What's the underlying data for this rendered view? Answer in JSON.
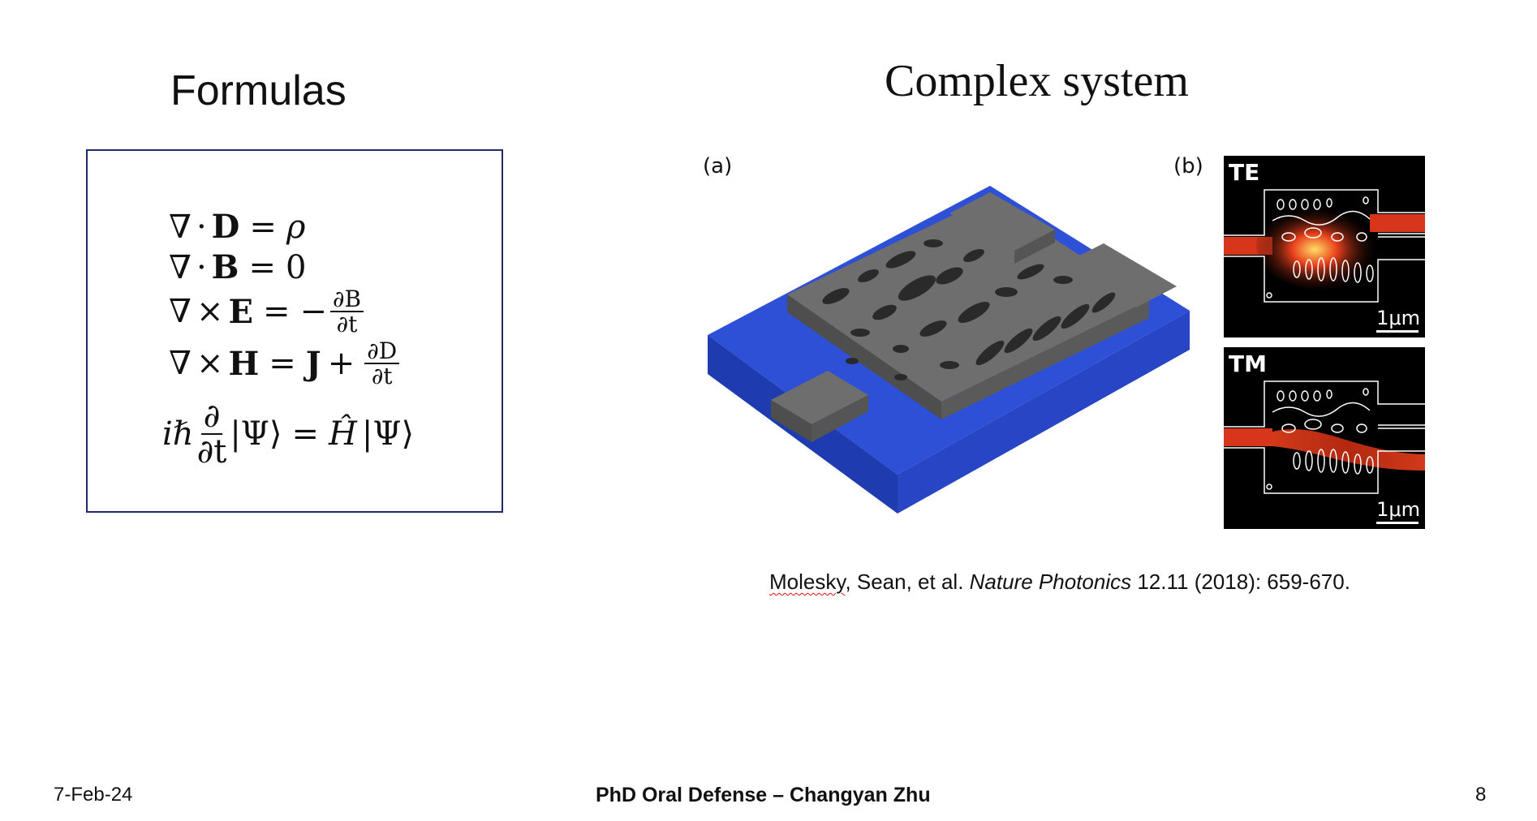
{
  "slide": {
    "title_left": "Formulas",
    "title_right": "Complex system"
  },
  "formulas": {
    "nabla": "∇",
    "dot": "·",
    "cross": "×",
    "D": "D",
    "B": "B",
    "E": "E",
    "H": "H",
    "J": "J",
    "rho": "ρ",
    "zero": "0",
    "eq": "=",
    "minus": "−",
    "plus": "+",
    "partial_B": "∂B",
    "partial_D": "∂D",
    "partial": "∂",
    "partial_t": "∂t",
    "i_hbar": "iℏ",
    "ket_psi": "|Ψ⟩",
    "H_hat": "Ĥ"
  },
  "figure": {
    "label_a": "(a)",
    "label_b": "(b)",
    "panel_te": {
      "tag": "TE",
      "scale": "1μm"
    },
    "panel_tm": {
      "tag": "TM",
      "scale": "1μm"
    },
    "colors": {
      "substrate": "#2d50d6",
      "device": "#6b6b6b",
      "field_glow": "#e8401c"
    }
  },
  "citation": {
    "author": "Molesky",
    "rest_before": ", Sean, et al. ",
    "journal": "Nature Photonics",
    "rest_after": " 12.11 (2018): 659-670."
  },
  "footer": {
    "date": "7-Feb-24",
    "center": "PhD Oral Defense – Changyan Zhu",
    "page": "8"
  }
}
